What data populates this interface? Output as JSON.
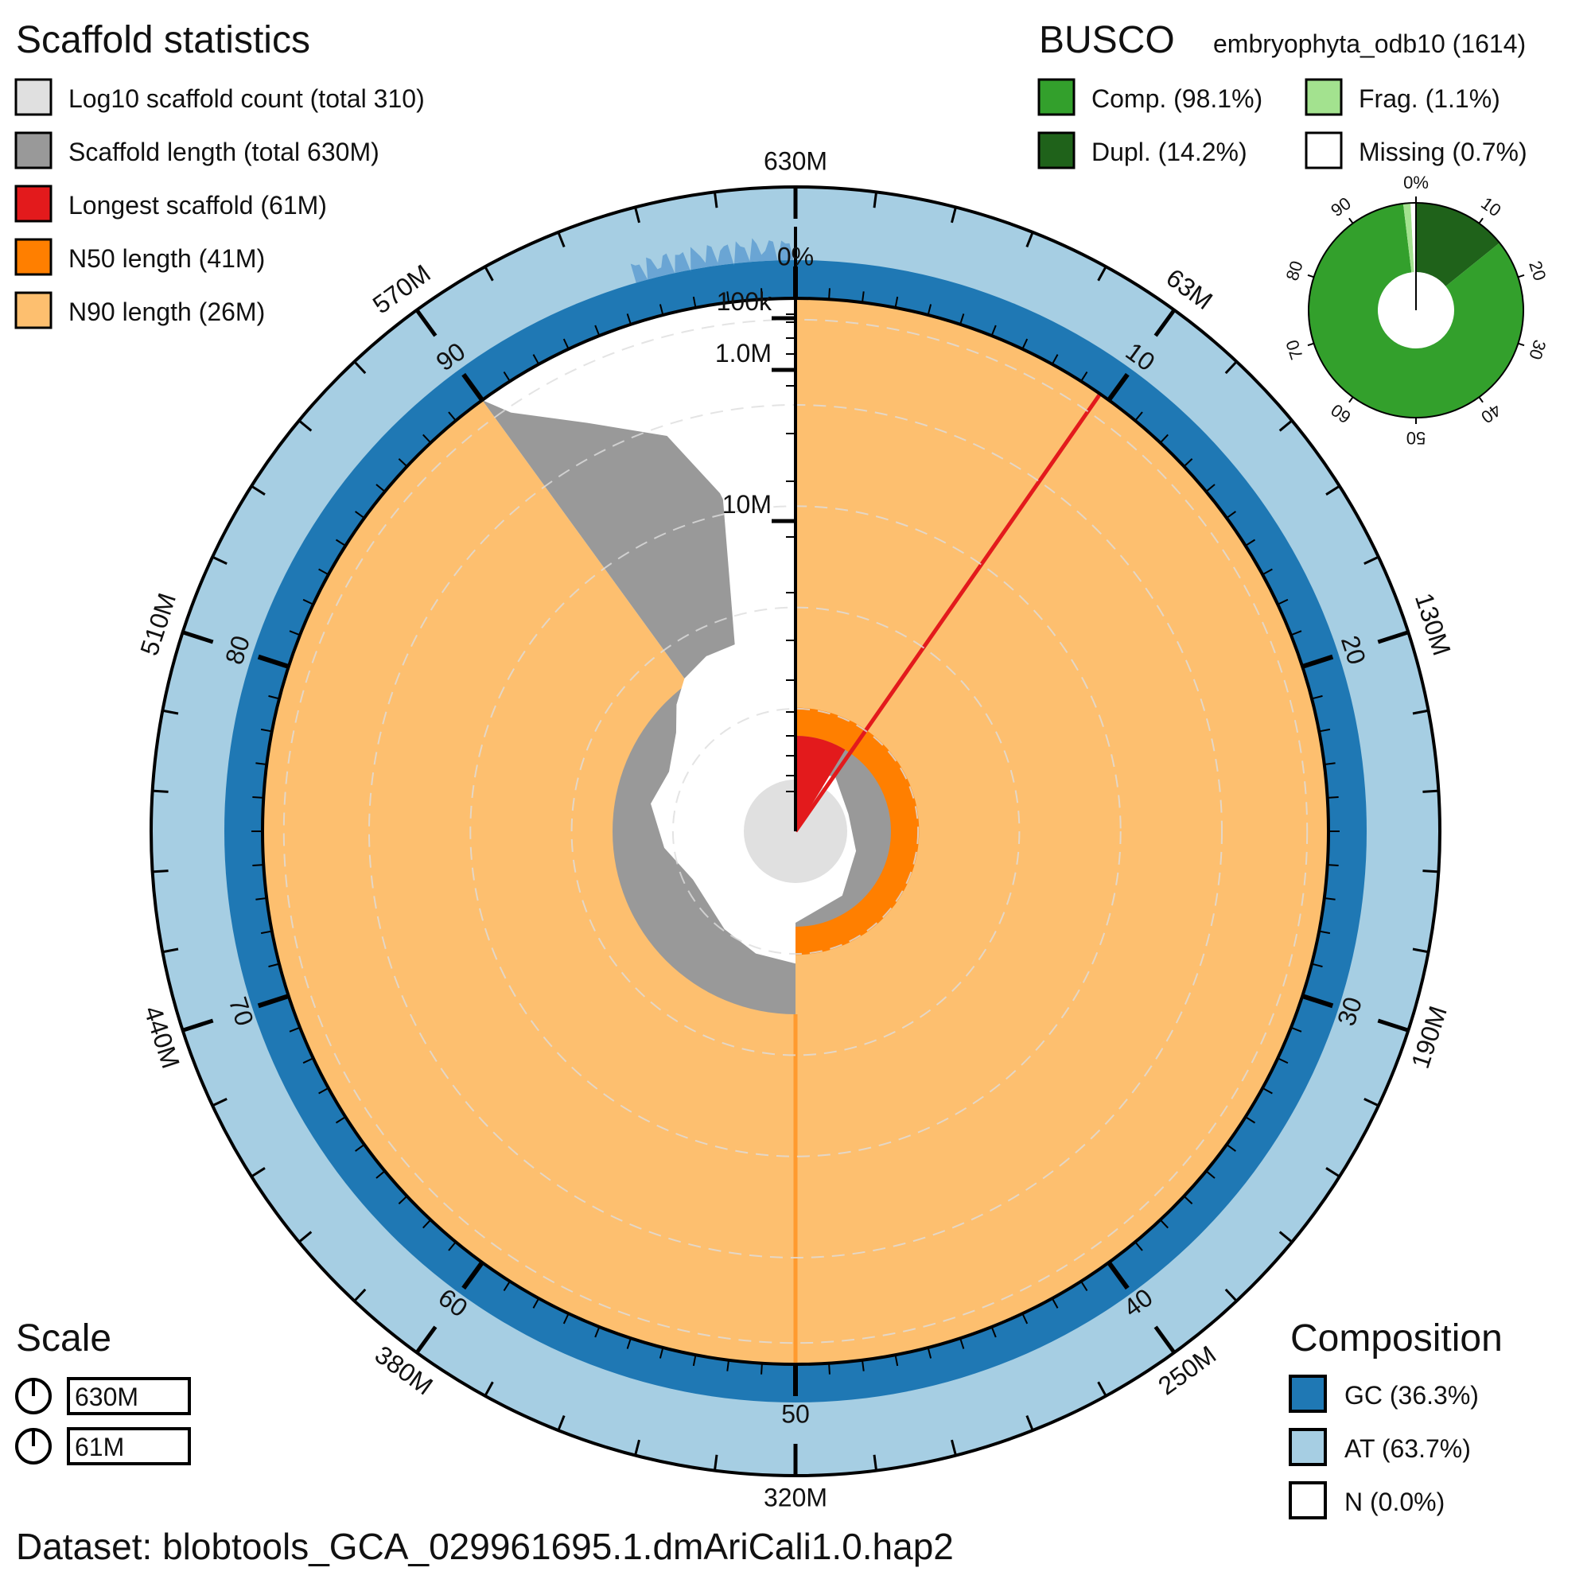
{
  "chart_data": {
    "type": "snail",
    "scaffold_statistics": {
      "title": "Scaffold statistics",
      "legend": [
        {
          "label": "Log10 scaffold count (total 310)",
          "color": "#e0e0e0"
        },
        {
          "label": "Scaffold length (total 630M)",
          "color": "#999999"
        },
        {
          "label": "Longest scaffold (61M)",
          "color": "#e31a1c"
        },
        {
          "label": "N50 length (41M)",
          "color": "#ff7f00"
        },
        {
          "label": "N90 length (26M)",
          "color": "#fdbf6f"
        }
      ],
      "total_length": 630,
      "total_length_unit": "M",
      "total_count": 310,
      "longest_scaffold": 61,
      "n50_length": 41,
      "n90_length": 26
    },
    "outer_axis_ticks": [
      "630M",
      "63M",
      "130M",
      "190M",
      "250M",
      "320M",
      "380M",
      "440M",
      "510M",
      "570M"
    ],
    "percent_axis_ticks": [
      "0%",
      "10",
      "20",
      "30",
      "40",
      "50",
      "60",
      "70",
      "80",
      "90"
    ],
    "radial_axis_ticks": [
      "100k",
      "1.0M",
      "10M"
    ],
    "busco": {
      "title": "BUSCO",
      "lineage": "embryophyta_odb10 (1614)",
      "legend": [
        {
          "label": "Comp. (98.1%)",
          "color": "#33a02c"
        },
        {
          "label": "Frag. (1.1%)",
          "color": "#a3e28f"
        },
        {
          "label": "Dupl. (14.2%)",
          "color": "#1f621a"
        },
        {
          "label": "Missing (0.7%)",
          "color": "#ffffff"
        }
      ],
      "complete": 98.1,
      "duplicated": 14.2,
      "fragmented": 1.1,
      "missing": 0.7,
      "ring_ticks": [
        "0%",
        "10",
        "20",
        "30",
        "40",
        "50",
        "60",
        "70",
        "80",
        "90"
      ]
    },
    "scale": {
      "title": "Scale",
      "items": [
        "630M",
        "61M"
      ]
    },
    "composition": {
      "title": "Composition",
      "legend": [
        {
          "label": "GC (36.3%)",
          "color": "#1f78b4"
        },
        {
          "label": "AT (63.7%)",
          "color": "#a6cee3"
        },
        {
          "label": "N (0.0%)",
          "color": "#ffffff"
        }
      ],
      "gc": 36.3,
      "at": 63.7,
      "n": 0.0
    },
    "dataset": "Dataset: blobtools_GCA_029961695.1.dmAriCali1.0.hap2"
  }
}
